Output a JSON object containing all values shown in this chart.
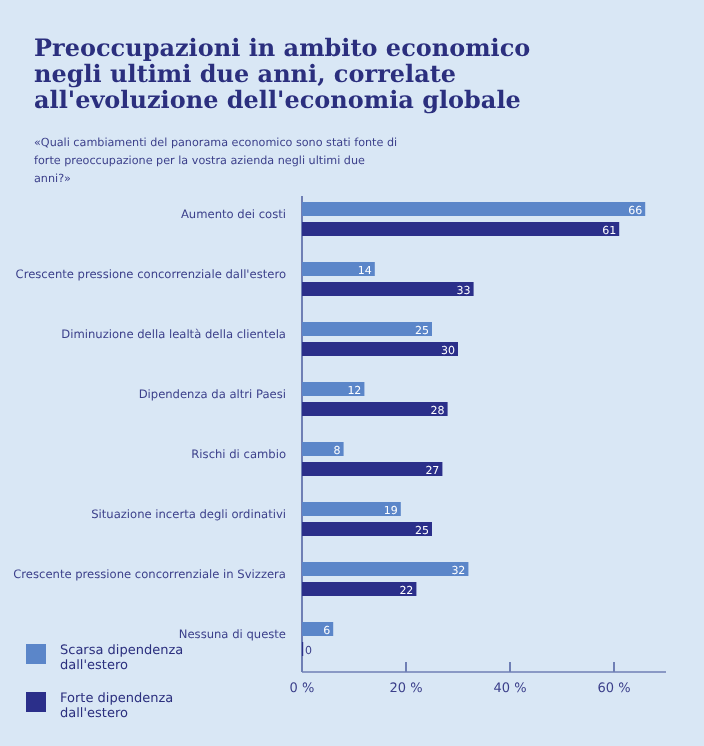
{
  "chart_data": {
    "type": "bar",
    "orientation": "horizontal",
    "title": "Preoccupazioni in ambito economico negli ultimi due anni, correlate all'evoluzione dell'economia globale",
    "subtitle": "«Quali cambiamenti del panorama economico sono stati fonte di forte preoccupazione per la vostra azienda negli ultimi due anni?»",
    "categories": [
      "Aumento dei costi",
      "Crescente pressione concorrenziale dall'estero",
      "Diminuzione della lealtà della clientela",
      "Dipendenza da altri Paesi",
      "Rischi di cambio",
      "Situazione incerta degli ordinativi",
      "Crescente pressione concorrenziale in Svizzera",
      "Nessuna di queste"
    ],
    "series": [
      {
        "name": "Scarsa dipendenza dall'estero",
        "color": "#5b86c9",
        "values": [
          66,
          14,
          25,
          12,
          8,
          19,
          32,
          6
        ]
      },
      {
        "name": "Forte dipendenza dall'estero",
        "color": "#2b2f8a",
        "values": [
          61,
          33,
          30,
          28,
          27,
          25,
          22,
          0
        ]
      }
    ],
    "xlim": [
      0,
      70
    ],
    "xticks": [
      {
        "value": 0,
        "label": "0 %"
      },
      {
        "value": 20,
        "label": "20 %"
      },
      {
        "value": 40,
        "label": "40 %"
      },
      {
        "value": 60,
        "label": "60 %"
      }
    ],
    "data_labels": true,
    "legend": "bottom left",
    "grid": false
  }
}
